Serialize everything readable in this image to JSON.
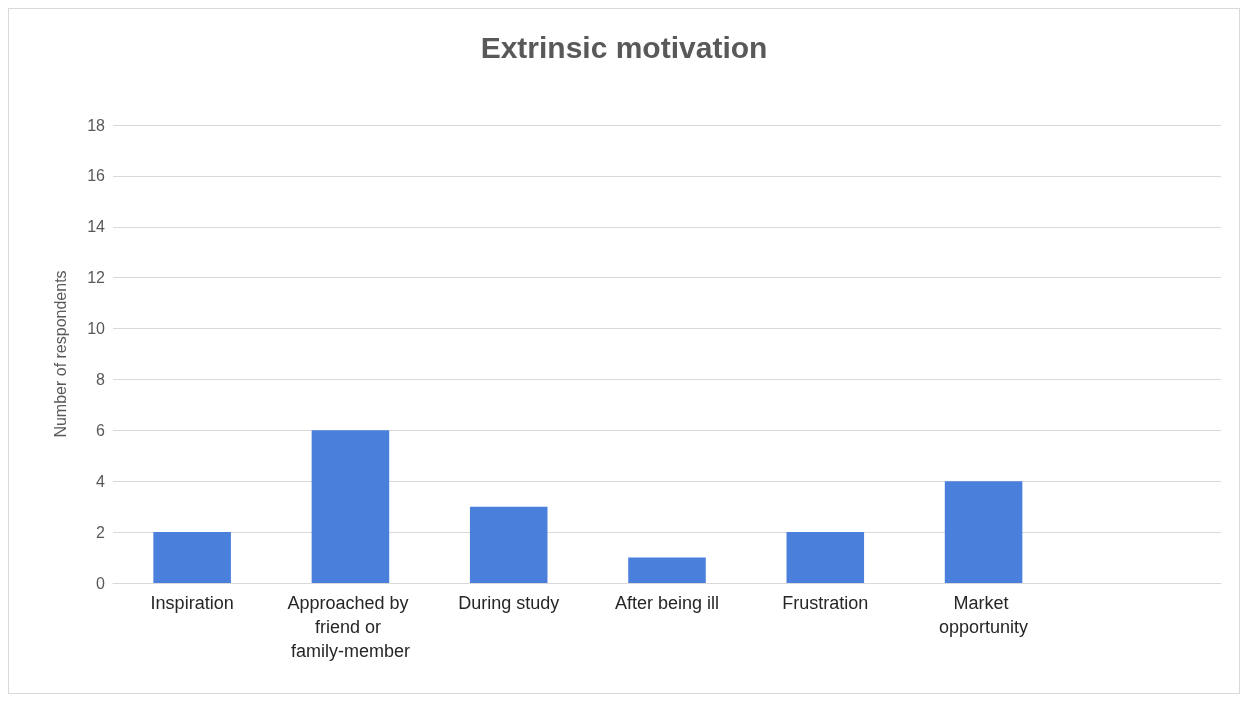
{
  "chart_data": {
    "type": "bar",
    "title": "Extrinsic motivation",
    "ylabel": "Number of respondents",
    "categories": [
      "Inspiration",
      "Approached by friend or family-member",
      "During study",
      "After being ill",
      "Frustration",
      "Market opportunity",
      null
    ],
    "values": [
      2,
      6,
      3,
      1,
      2,
      4,
      null
    ],
    "color": "#4a7fdc",
    "ylim": [
      0,
      18
    ],
    "yticks": [
      0,
      2,
      4,
      6,
      8,
      10,
      12,
      14,
      16,
      18
    ],
    "grid": "y"
  }
}
